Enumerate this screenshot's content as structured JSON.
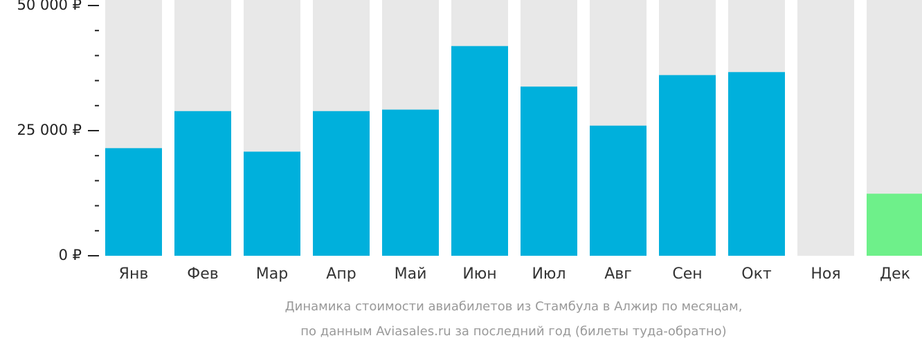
{
  "chart_data": {
    "type": "bar",
    "title": "Динамика стоимости авиабилетов из Стамбула в Алжир по месяцам,",
    "subtitle": "по данным Aviasales.ru за последний год (билеты туда-обратно)",
    "categories": [
      "Янв",
      "Фев",
      "Мар",
      "Апр",
      "Май",
      "Июн",
      "Июл",
      "Авг",
      "Сен",
      "Окт",
      "Ноя",
      "Дек"
    ],
    "values": [
      21500,
      28900,
      20800,
      28900,
      29200,
      41900,
      33800,
      26000,
      36100,
      36700,
      null,
      12400
    ],
    "color": "#00b0dc",
    "lowest_color": "#6ef08a",
    "background_color": "#e8e8e8",
    "ylim": [
      0,
      50000
    ],
    "yticks": [
      {
        "value": 0,
        "label": "0 ₽"
      },
      {
        "value": 25000,
        "label": "25 000 ₽"
      },
      {
        "value": 50000,
        "label": "50 000 ₽"
      }
    ],
    "minor_yticks": [
      5000,
      10000,
      15000,
      20000,
      30000,
      35000,
      40000,
      45000
    ]
  }
}
